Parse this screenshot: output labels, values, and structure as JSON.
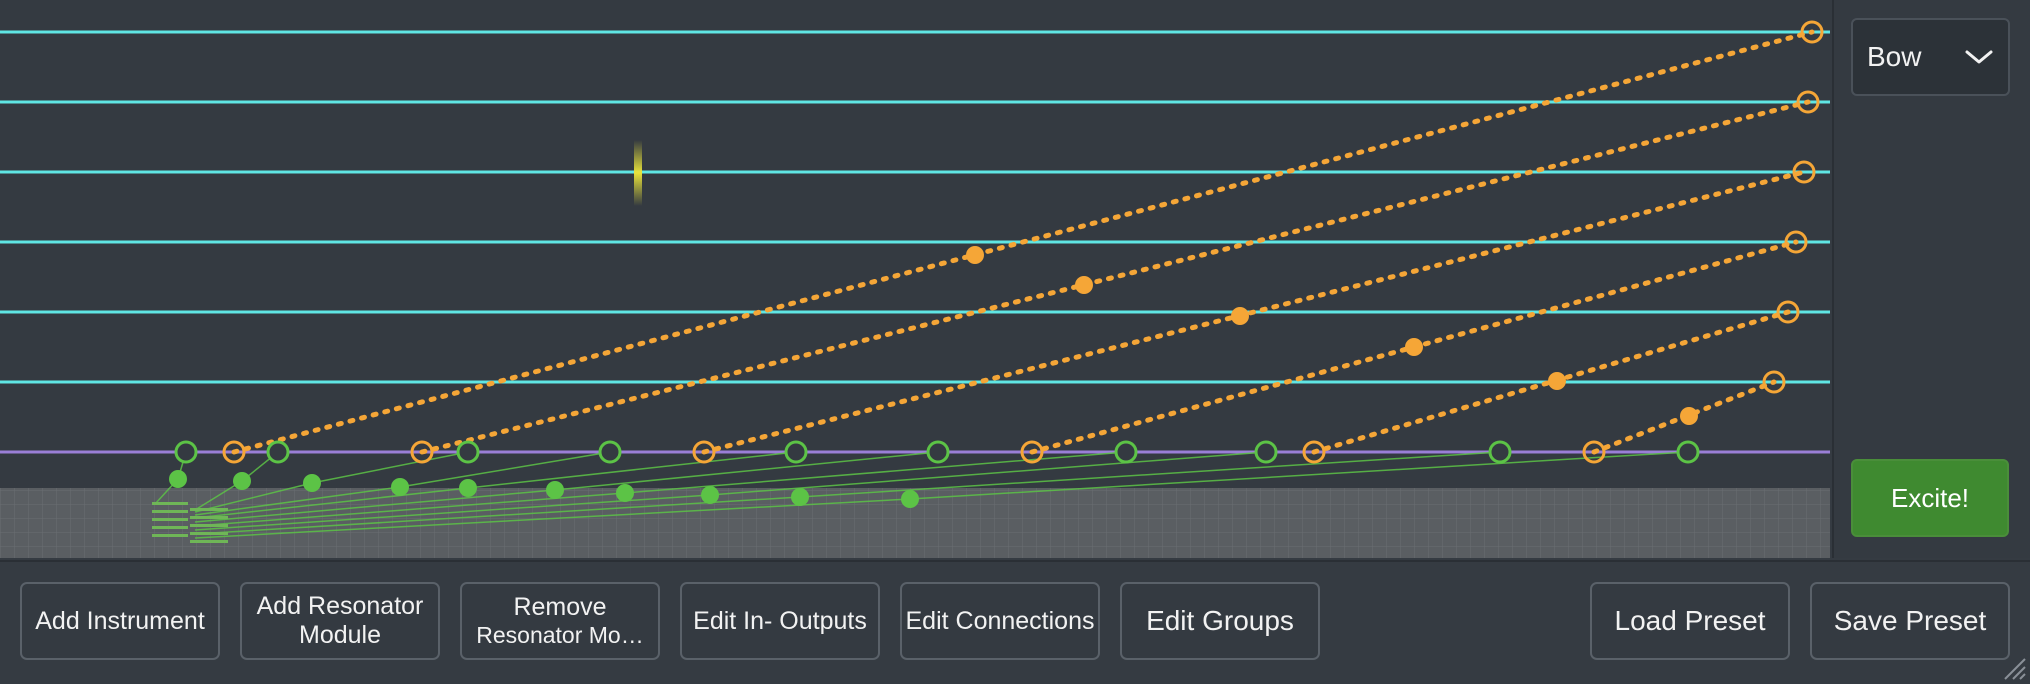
{
  "excitation": {
    "selected": "Bow",
    "excite_label": "Excite!"
  },
  "toolbar": {
    "add_instrument": "Add Instrument",
    "add_resonator_line1": "Add Resonator",
    "add_resonator_line2": "Module",
    "remove_resonator_line1": "Remove",
    "remove_resonator_line2": "Resonator Mo…",
    "edit_io": "Edit In- Outputs",
    "edit_connections": "Edit Connections",
    "edit_groups": "Edit Groups",
    "load_preset": "Load Preset",
    "save_preset": "Save Preset"
  },
  "colors": {
    "string": "#5fe6e4",
    "plate": "#9a7fd6",
    "output": "#f5a637",
    "connection": "#5cc346",
    "excitation_cursor": "#e8e23a",
    "excite_button": "#3f8a30"
  }
}
